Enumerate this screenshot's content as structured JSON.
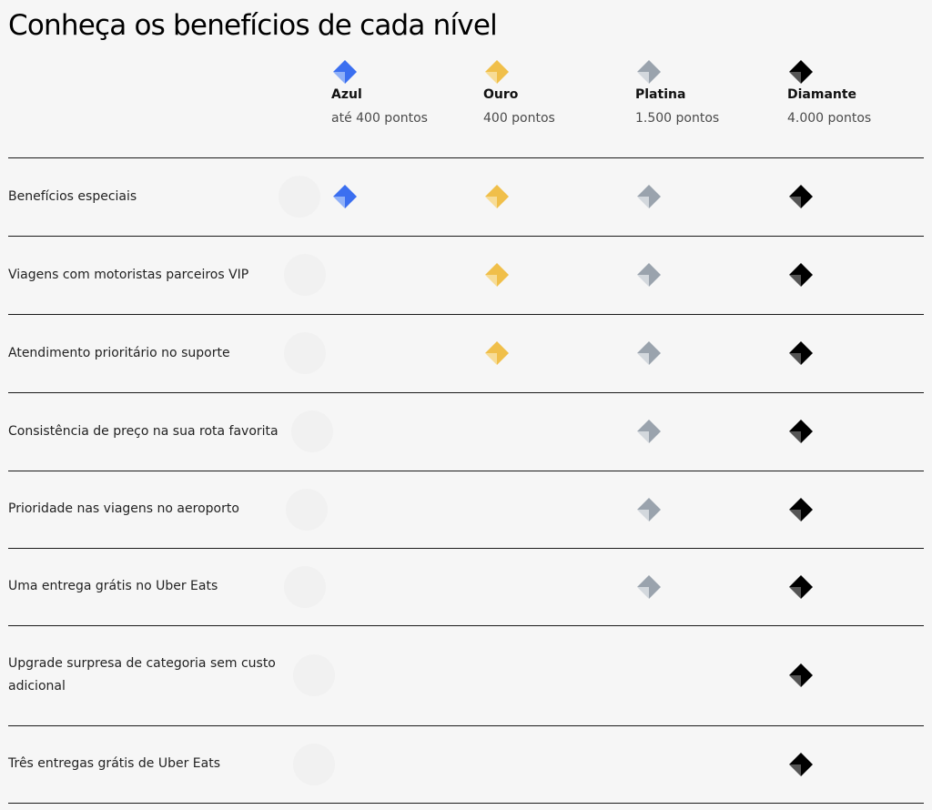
{
  "page": {
    "title": "Conheça os benefícios de cada nível"
  },
  "tiers": [
    {
      "id": "azul",
      "name": "Azul",
      "points": "até 400 pontos",
      "icon": "blue-diamond-icon",
      "color": "#3b6ff0",
      "shade": "#8fb0f7"
    },
    {
      "id": "ouro",
      "name": "Ouro",
      "points": "400 pontos",
      "icon": "gold-diamond-icon",
      "color": "#f0bf4a",
      "shade": "#f7dc96"
    },
    {
      "id": "platina",
      "name": "Platina",
      "points": "1.500 pontos",
      "icon": "platinum-diamond-icon",
      "color": "#9aa3ad",
      "shade": "#d3d8dd"
    },
    {
      "id": "diamante",
      "name": "Diamante",
      "points": "4.000 pontos",
      "icon": "black-diamond-icon",
      "color": "#000000",
      "shade": "#555555"
    }
  ],
  "benefits": [
    {
      "label": "Benefícios especiais",
      "tiers": [
        true,
        true,
        true,
        true
      ]
    },
    {
      "label": "Viagens com motoristas parceiros VIP",
      "tiers": [
        false,
        true,
        true,
        true
      ]
    },
    {
      "label": "Atendimento prioritário no suporte",
      "tiers": [
        false,
        true,
        true,
        true
      ]
    },
    {
      "label": "Consistência de preço na sua rota favorita",
      "tiers": [
        false,
        false,
        true,
        true
      ]
    },
    {
      "label": "Prioridade nas viagens no aeroporto",
      "tiers": [
        false,
        false,
        true,
        true
      ]
    },
    {
      "label": "Uma entrega grátis no Uber Eats",
      "tiers": [
        false,
        false,
        true,
        true
      ]
    },
    {
      "label": "Upgrade surpresa de categoria sem custo adicional",
      "tiers": [
        false,
        false,
        false,
        true
      ]
    },
    {
      "label": "Três entregas grátis de Uber Eats",
      "tiers": [
        false,
        false,
        false,
        true
      ]
    }
  ]
}
